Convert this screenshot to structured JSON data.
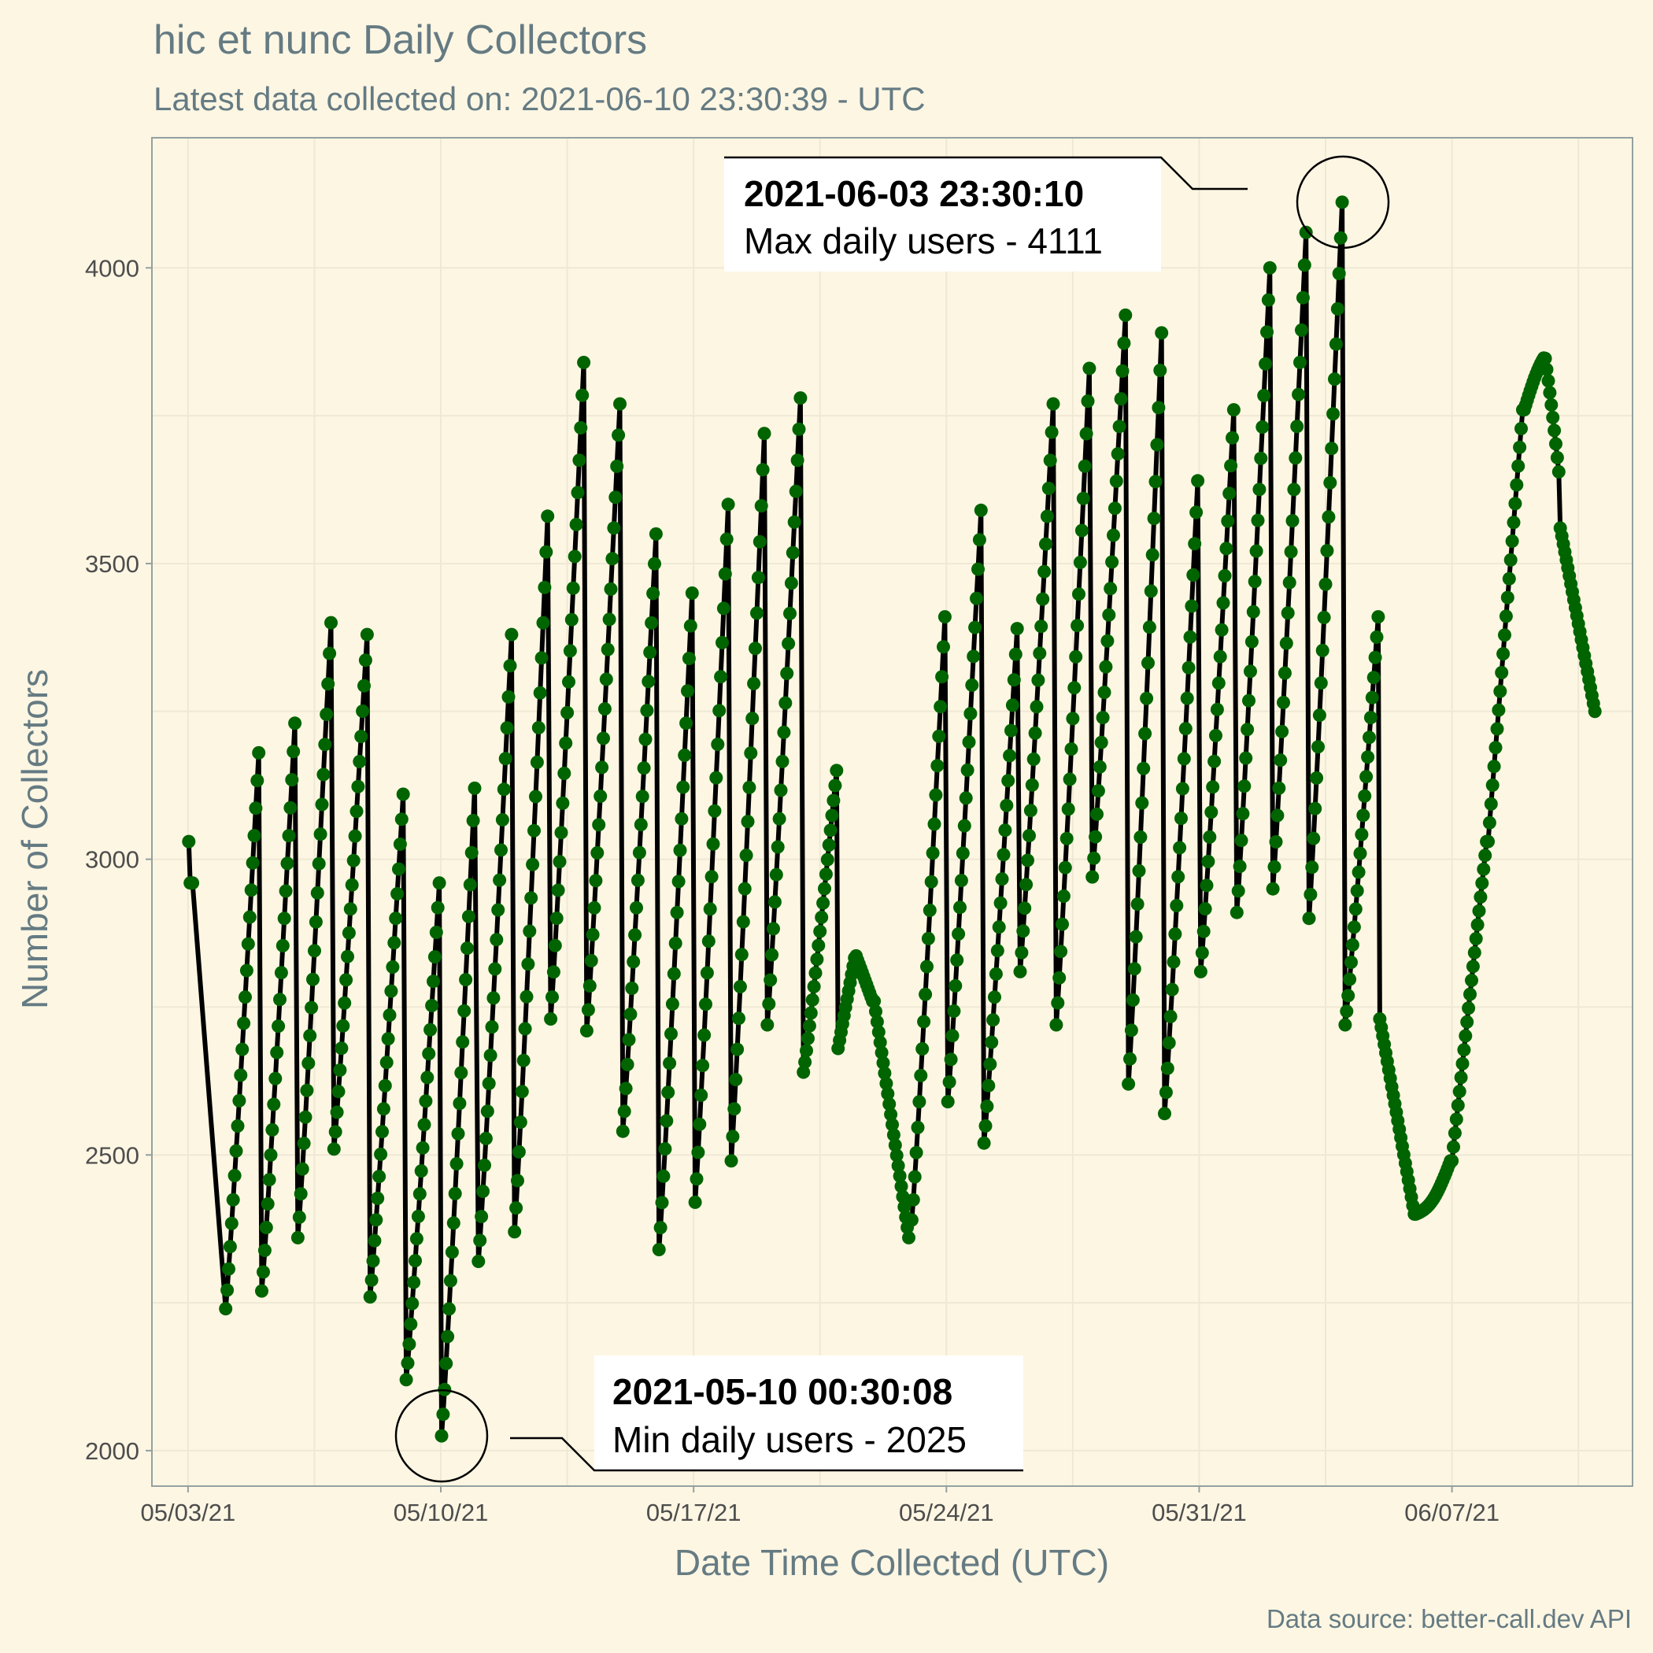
{
  "chart_data": {
    "type": "line",
    "title": "hic et nunc Daily Collectors",
    "subtitle": "Latest data collected on: 2021-06-10 23:30:39  - UTC",
    "xlabel": "Date Time Collected (UTC)",
    "ylabel": "Number of Collectors",
    "caption": "Data source: better-call.dev API",
    "x_axis": {
      "range": [
        "2021-05-02",
        "2021-06-12"
      ],
      "ticks": [
        {
          "date": "2021-05-03",
          "label": "05/03/21"
        },
        {
          "date": "2021-05-10",
          "label": "05/10/21"
        },
        {
          "date": "2021-05-17",
          "label": "05/17/21"
        },
        {
          "date": "2021-05-24",
          "label": "05/24/21"
        },
        {
          "date": "2021-05-31",
          "label": "05/31/21"
        },
        {
          "date": "2021-06-07",
          "label": "06/07/21"
        }
      ]
    },
    "y_axis": {
      "range": [
        1940,
        4220
      ],
      "ticks": [
        2000,
        2500,
        3000,
        3500,
        4000
      ]
    },
    "grid": true,
    "line_color": "#000000",
    "point_color": "#006400",
    "background_color": "#fdf6e3",
    "daily_extremes": [
      {
        "date": "2021-05-03",
        "low": 2950,
        "high": 3030
      },
      {
        "date": "2021-05-04",
        "low": 2240,
        "high": 3180
      },
      {
        "date": "2021-05-05",
        "low": 2270,
        "high": 3230
      },
      {
        "date": "2021-05-06",
        "low": 2360,
        "high": 3400
      },
      {
        "date": "2021-05-07",
        "low": 2510,
        "high": 3380
      },
      {
        "date": "2021-05-08",
        "low": 2260,
        "high": 3110
      },
      {
        "date": "2021-05-09",
        "low": 2120,
        "high": 2960
      },
      {
        "date": "2021-05-10",
        "low": 2025,
        "high": 3120
      },
      {
        "date": "2021-05-11",
        "low": 2320,
        "high": 3380
      },
      {
        "date": "2021-05-12",
        "low": 2370,
        "high": 3580
      },
      {
        "date": "2021-05-13",
        "low": 2730,
        "high": 3840
      },
      {
        "date": "2021-05-14",
        "low": 2710,
        "high": 3770
      },
      {
        "date": "2021-05-15",
        "low": 2540,
        "high": 3550
      },
      {
        "date": "2021-05-16",
        "low": 2340,
        "high": 3450
      },
      {
        "date": "2021-05-17",
        "low": 2420,
        "high": 3600
      },
      {
        "date": "2021-05-18",
        "low": 2490,
        "high": 3720
      },
      {
        "date": "2021-05-19",
        "low": 2720,
        "high": 3780
      },
      {
        "date": "2021-05-20",
        "low": 2640,
        "high": 3150
      },
      {
        "date": "2021-05-21",
        "low": 2670,
        "high": 2840
      },
      {
        "date": "2021-05-22",
        "low": 2360,
        "high": 2780
      },
      {
        "date": "2021-05-23",
        "low": 2390,
        "high": 3410
      },
      {
        "date": "2021-05-24",
        "low": 2590,
        "high": 3590
      },
      {
        "date": "2021-05-25",
        "low": 2520,
        "high": 3390
      },
      {
        "date": "2021-05-26",
        "low": 2810,
        "high": 3770
      },
      {
        "date": "2021-05-27",
        "low": 2720,
        "high": 3830
      },
      {
        "date": "2021-05-28",
        "low": 2970,
        "high": 3920
      },
      {
        "date": "2021-05-29",
        "low": 2620,
        "high": 3890
      },
      {
        "date": "2021-05-30",
        "low": 2570,
        "high": 3640
      },
      {
        "date": "2021-05-31",
        "low": 2810,
        "high": 3760
      },
      {
        "date": "2021-06-01",
        "low": 2910,
        "high": 4000
      },
      {
        "date": "2021-06-02",
        "low": 2950,
        "high": 4060
      },
      {
        "date": "2021-06-03",
        "low": 2900,
        "high": 4111
      },
      {
        "date": "2021-06-04",
        "low": 2720,
        "high": 3410
      },
      {
        "date": "2021-06-05",
        "low": 2400,
        "high": 2760
      },
      {
        "date": "2021-06-06",
        "low": 2380,
        "high": 2500
      },
      {
        "date": "2021-06-07",
        "low": 2410,
        "high": 3030
      },
      {
        "date": "2021-06-08",
        "low": 3050,
        "high": 3760
      },
      {
        "date": "2021-06-09",
        "low": 3560,
        "high": 3860
      },
      {
        "date": "2021-06-10",
        "low": 3250,
        "high": 3560
      }
    ],
    "annotations": [
      {
        "kind": "max",
        "datetime": "2021-06-03 23:30:10",
        "value": 4111,
        "label_bold": "2021-06-03 23:30:10",
        "label": "Max daily users - 4111"
      },
      {
        "kind": "min",
        "datetime": "2021-05-10 00:30:08",
        "value": 2025,
        "label_bold": "2021-05-10 00:30:08",
        "label": "Min daily users - 2025"
      }
    ]
  }
}
